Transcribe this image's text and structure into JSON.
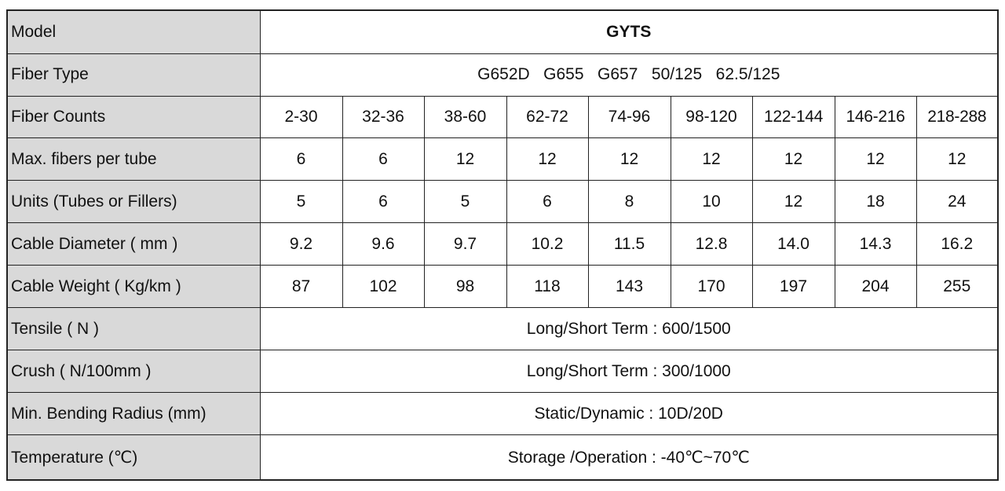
{
  "table": {
    "model": {
      "label": "Model",
      "value": "GYTS"
    },
    "fiber_type": {
      "label": "Fiber Type",
      "value": "G652D   G655   G657   50/125   62.5/125"
    },
    "fiber_counts": {
      "label": "Fiber Counts",
      "values": [
        "2-30",
        "32-36",
        "38-60",
        "62-72",
        "74-96",
        "98-120",
        "122-144",
        "146-216",
        "218-288"
      ]
    },
    "max_fibers_per_tube": {
      "label": "Max. fibers per tube",
      "values": [
        "6",
        "6",
        "12",
        "12",
        "12",
        "12",
        "12",
        "12",
        "12"
      ]
    },
    "units": {
      "label": "Units (Tubes or Fillers)",
      "values": [
        "5",
        "6",
        "5",
        "6",
        "8",
        "10",
        "12",
        "18",
        "24"
      ]
    },
    "cable_diameter": {
      "label": "Cable Diameter ( mm )",
      "values": [
        "9.2",
        "9.6",
        "9.7",
        "10.2",
        "11.5",
        "12.8",
        "14.0",
        "14.3",
        "16.2"
      ]
    },
    "cable_weight": {
      "label": "Cable Weight ( Kg/km )",
      "values": [
        "87",
        "102",
        "98",
        "118",
        "143",
        "170",
        "197",
        "204",
        "255"
      ]
    },
    "tensile": {
      "label": "Tensile ( N )",
      "value": "Long/Short Term : 600/1500"
    },
    "crush": {
      "label": "Crush ( N/100mm )",
      "value": "Long/Short Term : 300/1000"
    },
    "bending_radius": {
      "label": "Min. Bending Radius (mm)",
      "value": "Static/Dynamic : 10D/20D"
    },
    "temperature": {
      "label": "Temperature (℃)",
      "value": "Storage /Operation : -40℃~70℃"
    }
  }
}
